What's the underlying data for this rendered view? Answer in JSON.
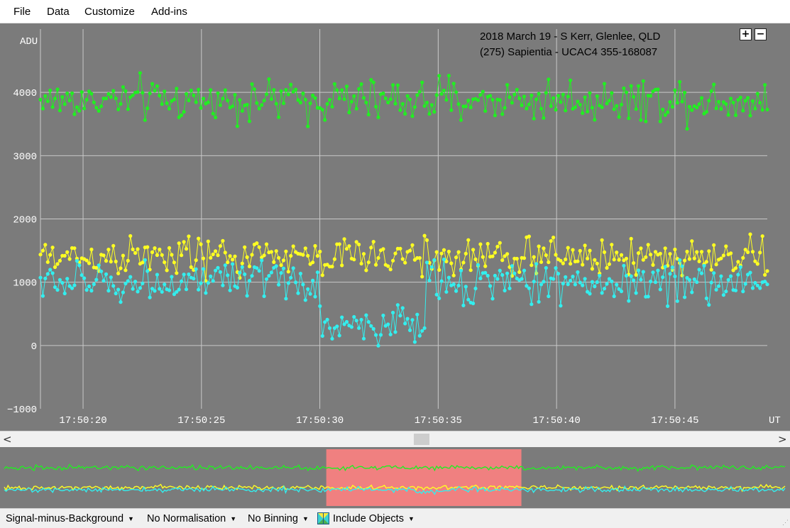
{
  "menu": {
    "file": "File",
    "data": "Data",
    "customize": "Customize",
    "addins": "Add-ins"
  },
  "chart": {
    "title_line1": "2018 March 19 - S Kerr, Glenlee, QLD",
    "title_line2": "(275) Sapientia - UCAC4 355-168087",
    "zoom_in": "+",
    "zoom_out": "−"
  },
  "chart_data": {
    "type": "line",
    "ylabel": "ADU",
    "xlabel": "UT",
    "ylim": [
      -1000,
      5000
    ],
    "xlim_seconds": [
      18.2,
      48.9
    ],
    "y_ticks": [
      "4000",
      "3000",
      "2000",
      "1000",
      "0",
      "−1000"
    ],
    "y_tick_values": [
      4000,
      3000,
      2000,
      1000,
      0,
      -1000
    ],
    "x_ticks": [
      "17:50:20",
      "17:50:25",
      "17:50:30",
      "17:50:35",
      "17:50:40",
      "17:50:45"
    ],
    "x_tick_seconds": [
      20,
      25,
      30,
      35,
      40,
      45
    ],
    "grid": true,
    "occultation_seconds": [
      30.0,
      34.5
    ],
    "points_per_series": 300,
    "series": [
      {
        "color": "#22ee22",
        "mean": 3880,
        "noise": 230,
        "dip": 0
      },
      {
        "color": "#ffff22",
        "mean": 1400,
        "noise": 220,
        "dip": 0
      },
      {
        "color": "#33eeee",
        "mean": 1000,
        "noise": 230,
        "dip": 680
      }
    ]
  },
  "overview": {
    "highlight_color": "#f08080",
    "highlight_fraction": [
      0.413,
      0.66
    ]
  },
  "scrollbar": {
    "left_arrow": "<",
    "right_arrow": ">"
  },
  "status": {
    "signal_mode": "Signal-minus-Background",
    "normalisation": "No Normalisation",
    "binning": "No Binning",
    "include_objects": "Include Objects",
    "caret": "▼"
  }
}
